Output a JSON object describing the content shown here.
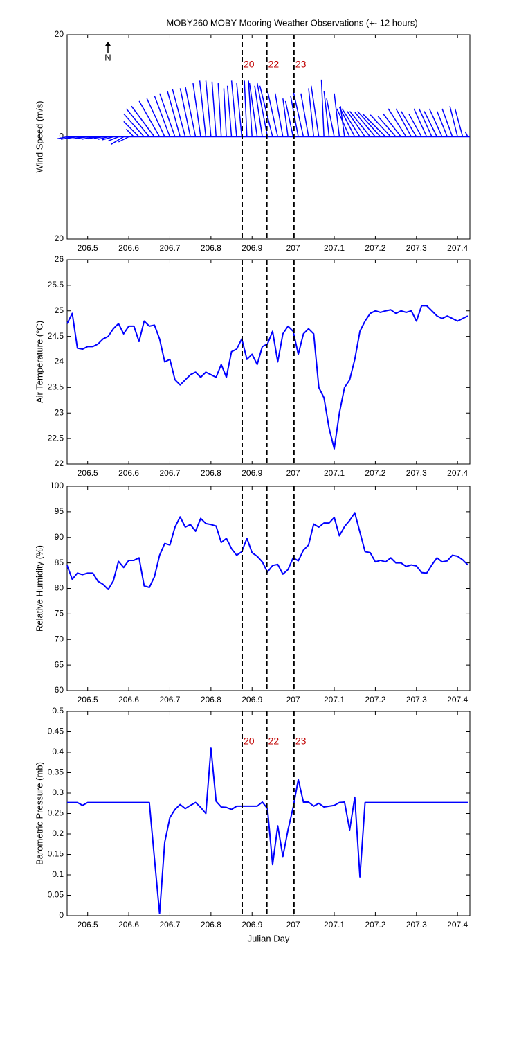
{
  "chart_data": [
    {
      "type": "feather",
      "title": "MOBY260 MOBY Mooring Weather Observations (+- 12 hours)",
      "ylabel": "Wind Speed (m/s)",
      "north_label": "N",
      "xlim": [
        206.45,
        207.43
      ],
      "xticks": [
        206.5,
        206.6,
        206.7,
        206.8,
        206.9,
        207,
        207.1,
        207.2,
        207.3,
        207.4
      ],
      "ylim": [
        -20,
        20
      ],
      "yticks": [
        {
          "value": -20,
          "label": "20"
        },
        0,
        20
      ],
      "vlines": [
        206.876,
        206.936,
        207.002
      ],
      "vline_labels": [
        "20",
        "22",
        "23"
      ],
      "vline_label_color": "#c00000",
      "series": [
        {
          "color": "#0000ff",
          "x": [
            206.45,
            206.4625,
            206.475,
            206.4875,
            206.5,
            206.5125,
            206.525,
            206.5375,
            206.55,
            206.5625,
            206.575,
            206.5875,
            206.6,
            206.6125,
            206.625,
            206.6375,
            206.65,
            206.6625,
            206.675,
            206.6875,
            206.7,
            206.7125,
            206.725,
            206.7375,
            206.75,
            206.7625,
            206.775,
            206.7875,
            206.8,
            206.8125,
            206.825,
            206.8375,
            206.85,
            206.8625,
            206.875,
            206.8875,
            206.9,
            206.9125,
            206.925,
            206.9375,
            206.95,
            206.9625,
            206.975,
            206.9875,
            207,
            207.0125,
            207.025,
            207.0375,
            207.05,
            207.0625,
            207.075,
            207.0875,
            207.1,
            207.1125,
            207.125,
            207.1375,
            207.15,
            207.1625,
            207.175,
            207.1875,
            207.2,
            207.2125,
            207.225,
            207.2375,
            207.25,
            207.2625,
            207.275,
            207.2875,
            207.3,
            207.3125,
            207.325,
            207.3375,
            207.35,
            207.3625,
            207.375,
            207.3875,
            207.4,
            207.4125,
            207.425
          ],
          "u": [
            -2,
            -2.2,
            -2,
            -1.8,
            -2,
            -2.2,
            -2,
            -1.8,
            -2,
            -2.2,
            -2,
            -2.5,
            -2,
            -1.5,
            -3,
            -4,
            -4.5,
            -4.5,
            -4,
            -3.5,
            -3,
            -3,
            -2.5,
            -2.5,
            -2,
            -2,
            -1.5,
            -1.2,
            -1,
            -0.8,
            -0.6,
            -0.5,
            -0.8,
            -1,
            -1,
            -0.5,
            -0.7,
            -1.5,
            -1.5,
            -2,
            -2.5,
            -2,
            -1.5,
            -1,
            -1.5,
            -1.5,
            -2,
            -1.5,
            -1,
            -1.5,
            -0.5,
            -1,
            -1.5,
            -1,
            -0.8,
            -2.5,
            -3,
            -3.5,
            -3.5,
            -4,
            -4,
            -4.5,
            -4.5,
            -4,
            -3.5,
            -3.5,
            -3.5,
            -3,
            -3,
            -2.5,
            -2.5,
            -2.5,
            -2.5,
            -2.5,
            -2,
            -2,
            -1.5,
            -1.5,
            -0.5
          ],
          "v": [
            -0.4,
            -0.5,
            -0.3,
            -0.4,
            -0.3,
            -0.5,
            -0.4,
            -0.3,
            -0.5,
            -0.6,
            -0.8,
            -1.5,
            -1,
            1.5,
            3,
            4.5,
            5.5,
            6,
            7,
            7.5,
            8,
            8.5,
            9,
            9.3,
            9.5,
            9.8,
            10.5,
            11,
            11,
            10.8,
            10.5,
            9.5,
            10,
            11,
            10.5,
            11,
            11,
            10.5,
            10,
            10.5,
            10,
            9,
            8.5,
            7.5,
            7,
            8,
            9,
            8.5,
            9.5,
            10,
            11.2,
            9,
            7.5,
            8.5,
            6,
            5.5,
            5.8,
            5.5,
            5,
            5,
            4.8,
            5,
            4.5,
            4.3,
            4,
            4.5,
            5.5,
            5.5,
            5,
            4.5,
            5.5,
            5.5,
            5,
            5.5,
            5,
            5.5,
            6,
            5.5,
            1
          ]
        }
      ]
    },
    {
      "type": "line",
      "ylabel": "Air Temperature (°C)",
      "xlim": [
        206.45,
        207.43
      ],
      "xticks": [
        206.5,
        206.6,
        206.7,
        206.8,
        206.9,
        207,
        207.1,
        207.2,
        207.3,
        207.4
      ],
      "ylim": [
        22,
        26
      ],
      "yticks": [
        22,
        22.5,
        23,
        23.5,
        24,
        24.5,
        25,
        25.5,
        26
      ],
      "vlines": [
        206.876,
        206.936,
        207.002
      ],
      "series": [
        {
          "color": "#0000ff",
          "x": [
            206.45,
            206.4625,
            206.475,
            206.4875,
            206.5,
            206.5125,
            206.525,
            206.5375,
            206.55,
            206.5625,
            206.575,
            206.5875,
            206.6,
            206.6125,
            206.625,
            206.6375,
            206.65,
            206.6625,
            206.675,
            206.6875,
            206.7,
            206.7125,
            206.725,
            206.7375,
            206.75,
            206.7625,
            206.775,
            206.7875,
            206.8,
            206.8125,
            206.825,
            206.8375,
            206.85,
            206.8625,
            206.875,
            206.8875,
            206.9,
            206.9125,
            206.925,
            206.9375,
            206.95,
            206.9625,
            206.975,
            206.9875,
            207,
            207.0125,
            207.025,
            207.0375,
            207.05,
            207.0625,
            207.075,
            207.0875,
            207.1,
            207.1125,
            207.125,
            207.1375,
            207.15,
            207.1625,
            207.175,
            207.1875,
            207.2,
            207.2125,
            207.225,
            207.2375,
            207.25,
            207.2625,
            207.275,
            207.2875,
            207.3,
            207.3125,
            207.325,
            207.3375,
            207.35,
            207.3625,
            207.375,
            207.3875,
            207.4,
            207.4125,
            207.425
          ],
          "values": [
            24.75,
            24.95,
            24.27,
            24.25,
            24.3,
            24.3,
            24.35,
            24.45,
            24.5,
            24.65,
            24.75,
            24.55,
            24.7,
            24.7,
            24.4,
            24.8,
            24.7,
            24.72,
            24.45,
            24,
            24.05,
            23.65,
            23.55,
            23.65,
            23.75,
            23.8,
            23.7,
            23.8,
            23.75,
            23.7,
            23.95,
            23.7,
            24.2,
            24.25,
            24.45,
            24.05,
            24.15,
            23.95,
            24.3,
            24.35,
            24.6,
            24,
            24.55,
            24.7,
            24.6,
            24.15,
            24.55,
            24.65,
            24.55,
            23.5,
            23.3,
            22.7,
            22.3,
            23,
            23.5,
            23.65,
            24.05,
            24.6,
            24.8,
            24.95,
            25,
            24.97,
            25,
            25.02,
            24.95,
            25,
            24.97,
            25,
            24.8,
            25.1,
            25.1,
            25,
            24.9,
            24.85,
            24.9,
            24.85,
            24.8,
            24.85,
            24.9
          ]
        }
      ]
    },
    {
      "type": "line",
      "ylabel": "Relative Humidity (%)",
      "xlim": [
        206.45,
        207.43
      ],
      "xticks": [
        206.5,
        206.6,
        206.7,
        206.8,
        206.9,
        207,
        207.1,
        207.2,
        207.3,
        207.4
      ],
      "ylim": [
        60,
        100
      ],
      "yticks": [
        60,
        65,
        70,
        75,
        80,
        85,
        90,
        95,
        100
      ],
      "vlines": [
        206.876,
        206.936,
        207.002
      ],
      "series": [
        {
          "color": "#0000ff",
          "x": [
            206.45,
            206.4625,
            206.475,
            206.4875,
            206.5,
            206.5125,
            206.525,
            206.5375,
            206.55,
            206.5625,
            206.575,
            206.5875,
            206.6,
            206.6125,
            206.625,
            206.6375,
            206.65,
            206.6625,
            206.675,
            206.6875,
            206.7,
            206.7125,
            206.725,
            206.7375,
            206.75,
            206.7625,
            206.775,
            206.7875,
            206.8,
            206.8125,
            206.825,
            206.8375,
            206.85,
            206.8625,
            206.875,
            206.8875,
            206.9,
            206.9125,
            206.925,
            206.9375,
            206.95,
            206.9625,
            206.975,
            206.9875,
            207,
            207.0125,
            207.025,
            207.0375,
            207.05,
            207.0625,
            207.075,
            207.0875,
            207.1,
            207.1125,
            207.125,
            207.1375,
            207.15,
            207.1625,
            207.175,
            207.1875,
            207.2,
            207.2125,
            207.225,
            207.2375,
            207.25,
            207.2625,
            207.275,
            207.2875,
            207.3,
            207.3125,
            207.325,
            207.3375,
            207.35,
            207.3625,
            207.375,
            207.3875,
            207.4,
            207.4125,
            207.425
          ],
          "values": [
            84.5,
            81.8,
            83,
            82.7,
            83,
            83,
            81.4,
            80.8,
            79.8,
            81.5,
            85.3,
            84.1,
            85.5,
            85.5,
            86,
            80.5,
            80.2,
            82.3,
            86.5,
            88.8,
            88.5,
            92,
            94,
            92,
            92.5,
            91.2,
            93.7,
            92.7,
            92.5,
            92.2,
            89,
            89.8,
            87.8,
            86.5,
            87.2,
            89.8,
            87,
            86.3,
            85.2,
            83.2,
            84.5,
            84.7,
            82.8,
            83.7,
            86,
            85.4,
            87.5,
            88.5,
            92.6,
            92,
            92.8,
            92.8,
            93.9,
            90.3,
            92.1,
            93.3,
            94.8,
            91,
            87.2,
            87,
            85.2,
            85.5,
            85.2,
            86,
            85,
            85,
            84.3,
            84.6,
            84.4,
            83.1,
            83,
            84.6,
            86,
            85.2,
            85.4,
            86.5,
            86.3,
            85.6,
            84.6
          ]
        }
      ]
    },
    {
      "type": "line",
      "ylabel": "Barometric Pressure (mb)",
      "xlabel": "Julian Day",
      "xlim": [
        206.45,
        207.43
      ],
      "xticks": [
        206.5,
        206.6,
        206.7,
        206.8,
        206.9,
        207,
        207.1,
        207.2,
        207.3,
        207.4
      ],
      "ylim": [
        0,
        0.5
      ],
      "yticks": [
        0,
        0.05,
        0.1,
        0.15,
        0.2,
        0.25,
        0.3,
        0.35,
        0.4,
        0.45,
        0.5
      ],
      "vlines": [
        206.876,
        206.936,
        207.002
      ],
      "vline_labels": [
        "20",
        "22",
        "23"
      ],
      "vline_label_color": "#c00000",
      "series": [
        {
          "color": "#0000ff",
          "x": [
            206.45,
            206.4625,
            206.475,
            206.4875,
            206.5,
            206.5125,
            206.525,
            206.5375,
            206.55,
            206.5625,
            206.575,
            206.5875,
            206.6,
            206.6125,
            206.625,
            206.6375,
            206.65,
            206.6625,
            206.675,
            206.6875,
            206.7,
            206.7125,
            206.725,
            206.7375,
            206.75,
            206.7625,
            206.775,
            206.7875,
            206.8,
            206.8125,
            206.825,
            206.8375,
            206.85,
            206.8625,
            206.875,
            206.8875,
            206.9,
            206.9125,
            206.925,
            206.9375,
            206.95,
            206.9625,
            206.975,
            206.9875,
            207,
            207.0125,
            207.025,
            207.0375,
            207.05,
            207.0625,
            207.075,
            207.0875,
            207.1,
            207.1125,
            207.125,
            207.1375,
            207.15,
            207.1625,
            207.175,
            207.1875,
            207.2,
            207.2125,
            207.225,
            207.2375,
            207.25,
            207.2625,
            207.275,
            207.2875,
            207.3,
            207.3125,
            207.325,
            207.3375,
            207.35,
            207.3625,
            207.375,
            207.3875,
            207.4,
            207.4125,
            207.425
          ],
          "values": [
            0.277,
            0.277,
            0.277,
            0.27,
            0.277,
            0.277,
            0.277,
            0.277,
            0.277,
            0.277,
            0.277,
            0.277,
            0.277,
            0.277,
            0.277,
            0.277,
            0.277,
            0.14,
            0.005,
            0.18,
            0.24,
            0.26,
            0.272,
            0.262,
            0.27,
            0.277,
            0.265,
            0.25,
            0.41,
            0.28,
            0.266,
            0.265,
            0.26,
            0.268,
            0.268,
            0.268,
            0.268,
            0.268,
            0.278,
            0.262,
            0.125,
            0.22,
            0.145,
            0.21,
            0.265,
            0.333,
            0.278,
            0.278,
            0.268,
            0.275,
            0.266,
            0.268,
            0.27,
            0.277,
            0.278,
            0.21,
            0.29,
            0.095,
            0.277,
            0.277,
            0.277,
            0.277,
            0.277,
            0.277,
            0.277,
            0.277,
            0.277,
            0.277,
            0.277,
            0.277,
            0.277,
            0.277,
            0.277,
            0.277,
            0.277,
            0.277,
            0.277,
            0.277,
            0.277
          ]
        }
      ]
    }
  ]
}
